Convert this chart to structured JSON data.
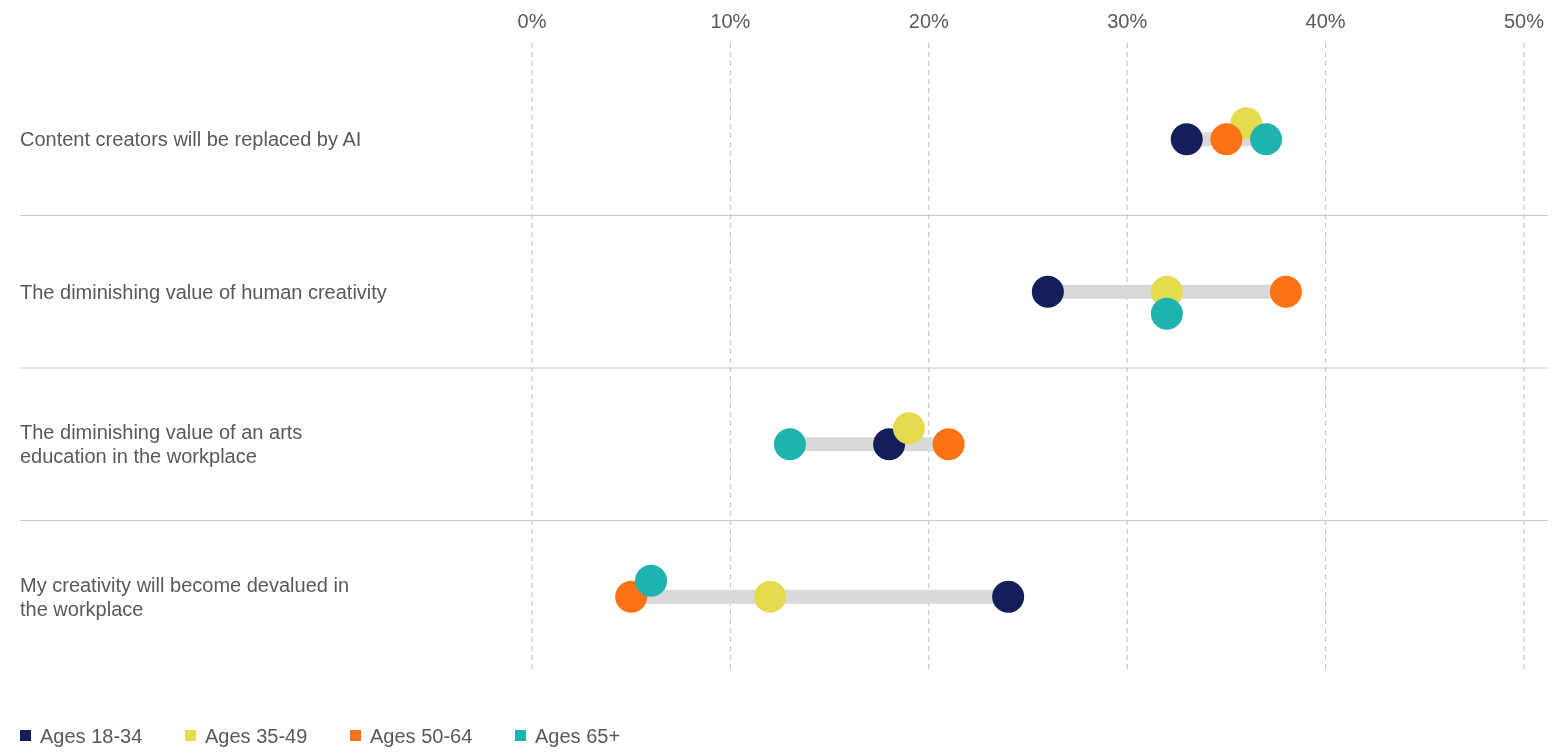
{
  "chart_data": {
    "type": "scatter",
    "orientation": "horizontal",
    "marker": "circle",
    "grid": "x",
    "legend": "bottom left",
    "categories": [
      "Content creators will be replaced by AI",
      "The diminishing value of human creativity",
      "The diminishing value of an arts education in the workplace",
      "My creativity will become devalued in the workplace"
    ],
    "xlim": [
      0,
      50
    ],
    "xticks": [
      {
        "value": 0,
        "label": "0%"
      },
      {
        "value": 10,
        "label": "10%"
      },
      {
        "value": 20,
        "label": "20%"
      },
      {
        "value": 30,
        "label": "30%"
      },
      {
        "value": 40,
        "label": "40%"
      },
      {
        "value": 50,
        "label": "50%"
      }
    ],
    "series": [
      {
        "name": "Ages 18-34",
        "color": "#141e5a",
        "values": [
          33,
          26,
          18,
          24
        ]
      },
      {
        "name": "Ages 35-49",
        "color": "#e3dc4e",
        "values": [
          36,
          32,
          19,
          12
        ]
      },
      {
        "name": "Ages 50-64",
        "color": "#fb7315",
        "values": [
          35,
          38,
          21,
          5
        ]
      },
      {
        "name": "Ages 65+",
        "color": "#1fb3b0",
        "values": [
          37,
          32,
          13,
          6
        ]
      }
    ]
  }
}
